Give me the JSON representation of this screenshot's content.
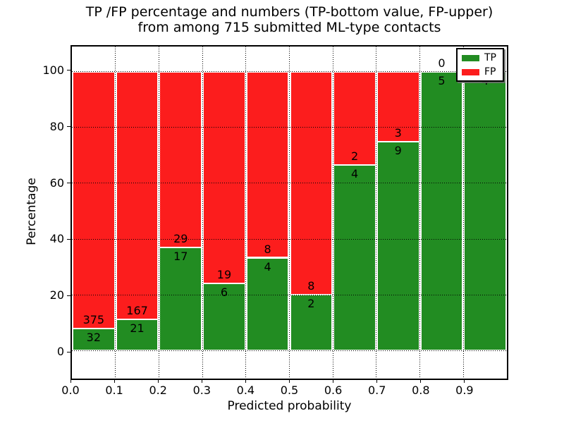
{
  "chart_data": {
    "type": "bar",
    "stacked": true,
    "title_line1": "TP /FP percentage and numbers (TP-bottom value, FP-upper)",
    "title_line2": "from among 715 submitted ML-type contacts",
    "xlabel": "Predicted probability",
    "ylabel": "Percentage",
    "total_contacts": 715,
    "xlim": [
      0.0,
      1.0
    ],
    "ylim": [
      -10,
      109
    ],
    "grid": "dotted",
    "legend_position": "upper right",
    "colors": {
      "tp": "#228c22",
      "fp": "#fc1d1d",
      "bar_edge": "#ffffff",
      "grid": "#000000",
      "background": "#ffffff"
    },
    "x_tick_labels": [
      "0.0",
      "0.1",
      "0.2",
      "0.3",
      "0.4",
      "0.5",
      "0.6",
      "0.7",
      "0.8",
      "0.9"
    ],
    "y_tick_values": [
      0,
      20,
      40,
      60,
      80,
      100
    ],
    "y_tick_labels": [
      "0",
      "20",
      "40",
      "60",
      "80",
      "100"
    ],
    "legend": [
      {
        "label": "TP",
        "color": "#228c22"
      },
      {
        "label": "FP",
        "color": "#fc1d1d"
      }
    ],
    "bins": [
      {
        "start": 0.0,
        "end": 0.1,
        "tp": 32,
        "fp": 375,
        "tp_pct": 7.86,
        "fp_label": "375",
        "tp_label": "32"
      },
      {
        "start": 0.1,
        "end": 0.2,
        "tp": 21,
        "fp": 167,
        "tp_pct": 11.17,
        "fp_label": "167",
        "tp_label": "21"
      },
      {
        "start": 0.2,
        "end": 0.3,
        "tp": 17,
        "fp": 29,
        "tp_pct": 36.96,
        "fp_label": "29",
        "tp_label": "17"
      },
      {
        "start": 0.3,
        "end": 0.4,
        "tp": 6,
        "fp": 19,
        "tp_pct": 24.0,
        "fp_label": "19",
        "tp_label": "6"
      },
      {
        "start": 0.4,
        "end": 0.5,
        "tp": 4,
        "fp": 8,
        "tp_pct": 33.33,
        "fp_label": "8",
        "tp_label": "4"
      },
      {
        "start": 0.5,
        "end": 0.6,
        "tp": 2,
        "fp": 8,
        "tp_pct": 20.0,
        "fp_label": "8",
        "tp_label": "2"
      },
      {
        "start": 0.6,
        "end": 0.7,
        "tp": 4,
        "fp": 2,
        "tp_pct": 66.67,
        "fp_label": "2",
        "tp_label": "4"
      },
      {
        "start": 0.7,
        "end": 0.8,
        "tp": 9,
        "fp": 3,
        "tp_pct": 75.0,
        "fp_label": "3",
        "tp_label": "9"
      },
      {
        "start": 0.8,
        "end": 0.9,
        "tp": 5,
        "fp": 0,
        "tp_pct": 100.0,
        "fp_label": "0",
        "tp_label": "5"
      },
      {
        "start": 0.9,
        "end": 1.0,
        "tp": 4,
        "fp": 0,
        "tp_pct": 100.0,
        "fp_label": null,
        "tp_label": "4"
      }
    ]
  }
}
